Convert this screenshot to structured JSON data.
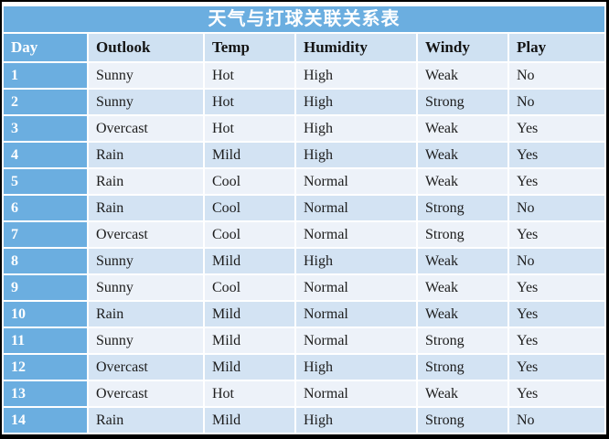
{
  "title": "天气与打球关联关系表",
  "columns": [
    "Day",
    "Outlook",
    "Temp",
    "Humidity",
    "Windy",
    "Play"
  ],
  "rows": [
    [
      "1",
      "Sunny",
      "Hot",
      "High",
      "Weak",
      "No"
    ],
    [
      "2",
      "Sunny",
      "Hot",
      "High",
      "Strong",
      "No"
    ],
    [
      "3",
      "Overcast",
      "Hot",
      "High",
      "Weak",
      "Yes"
    ],
    [
      "4",
      "Rain",
      "Mild",
      "High",
      "Weak",
      "Yes"
    ],
    [
      "5",
      "Rain",
      "Cool",
      "Normal",
      "Weak",
      "Yes"
    ],
    [
      "6",
      "Rain",
      "Cool",
      "Normal",
      "Strong",
      "No"
    ],
    [
      "7",
      "Overcast",
      "Cool",
      "Normal",
      "Strong",
      "Yes"
    ],
    [
      "8",
      "Sunny",
      "Mild",
      "High",
      "Weak",
      "No"
    ],
    [
      "9",
      "Sunny",
      "Cool",
      "Normal",
      "Weak",
      "Yes"
    ],
    [
      "10",
      "Rain",
      "Mild",
      "Normal",
      "Weak",
      "Yes"
    ],
    [
      "11",
      "Sunny",
      "Mild",
      "Normal",
      "Strong",
      "Yes"
    ],
    [
      "12",
      "Overcast",
      "Mild",
      "High",
      "Strong",
      "Yes"
    ],
    [
      "13",
      "Overcast",
      "Hot",
      "Normal",
      "Weak",
      "Yes"
    ],
    [
      "14",
      "Rain",
      "Mild",
      "High",
      "Strong",
      "No"
    ]
  ],
  "colors": {
    "accent_blue": "#6BAEE0",
    "header_bg": "#CFE1F2",
    "band_light": "#EDF2F9",
    "band_dark": "#D3E3F3",
    "frame_border": "#000000",
    "title_text": "#FFFFFF",
    "body_text": "#1C1C1C"
  }
}
